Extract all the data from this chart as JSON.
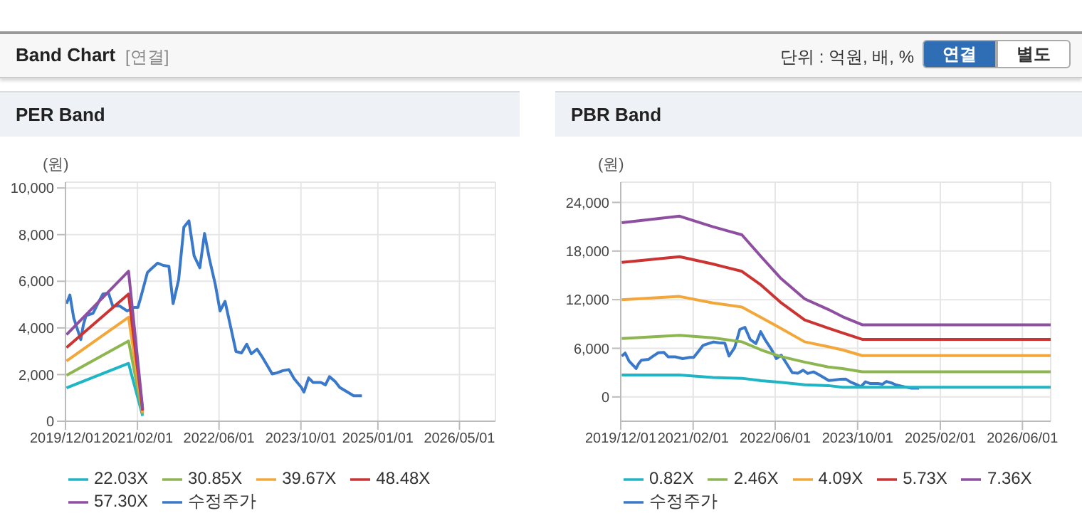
{
  "chart_data": [
    {
      "type": "other",
      "title": "Band Chart",
      "annotations": [
        "[연결]",
        "단위 : 억원, 배, %",
        "연결",
        "별도"
      ]
    },
    {
      "type": "line",
      "title": "PER Band",
      "ylabel": "(원)",
      "grid": true,
      "legend": "bottom",
      "marker": "none",
      "line_style": "solid",
      "xlim": [
        "2019-12-01",
        "2026-12-01"
      ],
      "xticks": [
        {
          "value": "2019-12-01",
          "label": "2019/12/01"
        },
        {
          "value": "2021-02-01",
          "label": "2021/02/01"
        },
        {
          "value": "2022-06-01",
          "label": "2022/06/01"
        },
        {
          "value": "2023-10-01",
          "label": "2023/10/01"
        },
        {
          "value": "2025-01-01",
          "label": "2025/01/01"
        },
        {
          "value": "2026-05-01",
          "label": "2026/05/01"
        }
      ],
      "ylim": [
        0,
        10250
      ],
      "yticks": [
        0,
        {
          "value": 2000,
          "label": "2,000"
        },
        {
          "value": 4000,
          "label": "4,000"
        },
        {
          "value": 6000,
          "label": "6,000"
        },
        {
          "value": 8000,
          "label": "8,000"
        },
        {
          "value": 10000,
          "label": "10,000"
        }
      ],
      "series": [
        {
          "name": "수정주가",
          "color": "#3a78c9",
          "x": [
            "2019-12-07",
            "2019-12-27",
            "2020-01-19",
            "2020-03-01",
            "2020-03-16",
            "2020-04-01",
            "2020-05-13",
            "2020-06-10",
            "2020-07-10",
            "2020-08-13",
            "2020-09-07",
            "2020-10-19",
            "2020-12-01",
            "2021-01-13",
            "2021-02-04",
            "2021-02-26",
            "2021-04-01",
            "2021-04-22",
            "2021-06-01",
            "2021-07-04",
            "2021-08-07",
            "2021-09-01",
            "2021-10-04",
            "2021-11-04",
            "2021-12-04",
            "2022-01-04",
            "2022-02-07",
            "2022-03-07",
            "2022-04-04",
            "2022-05-10",
            "2022-06-07",
            "2022-07-07",
            "2022-08-10",
            "2022-09-10",
            "2022-10-13",
            "2022-11-13",
            "2022-12-10",
            "2023-01-13",
            "2023-02-10",
            "2023-03-16",
            "2023-04-13",
            "2023-05-10",
            "2023-06-16",
            "2023-07-22",
            "2023-08-22",
            "2023-10-04",
            "2023-10-19",
            "2023-11-16",
            "2023-12-13",
            "2024-01-28",
            "2024-02-24",
            "2024-03-19",
            "2024-04-22",
            "2024-05-19",
            "2024-07-04",
            "2024-08-10",
            "2024-09-28"
          ],
          "values": [
            5040,
            5410,
            4430,
            3500,
            4120,
            4530,
            4630,
            5040,
            5450,
            5490,
            4940,
            4940,
            4730,
            4880,
            4880,
            5450,
            6370,
            6520,
            6780,
            6680,
            6640,
            5040,
            6070,
            8320,
            8590,
            7090,
            6580,
            8050,
            6990,
            5860,
            4730,
            5140,
            4020,
            2990,
            2930,
            3300,
            2890,
            3090,
            2790,
            2380,
            2030,
            2070,
            2170,
            2210,
            1820,
            1450,
            1250,
            1860,
            1660,
            1660,
            1560,
            1910,
            1700,
            1450,
            1250,
            1090,
            1090
          ]
        },
        {
          "name": "22.03X",
          "color": "#1fb5c4",
          "x": [
            "2019-12-07",
            "2020-12-10",
            "2021-03-04"
          ],
          "values": [
            1430,
            2480,
            230
          ]
        },
        {
          "name": "30.85X",
          "color": "#8db650",
          "x": [
            "2019-12-07",
            "2020-12-10",
            "2021-03-04"
          ],
          "values": [
            1970,
            3440,
            300
          ]
        },
        {
          "name": "39.67X",
          "color": "#f3a73a",
          "x": [
            "2019-12-07",
            "2020-12-10",
            "2021-03-04"
          ],
          "values": [
            2580,
            4460,
            370
          ]
        },
        {
          "name": "48.48X",
          "color": "#cc3333",
          "x": [
            "2019-12-07",
            "2020-12-10",
            "2021-03-04"
          ],
          "values": [
            3160,
            5450,
            460
          ]
        },
        {
          "name": "57.30X",
          "color": "#8e4fa0",
          "x": [
            "2019-12-07",
            "2020-12-10",
            "2021-03-04"
          ],
          "values": [
            3710,
            6430,
            530
          ]
        }
      ]
    },
    {
      "type": "line",
      "title": "PBR Band",
      "ylabel": "(원)",
      "grid": true,
      "legend": "bottom",
      "marker": "none",
      "line_style": "solid",
      "xlim": [
        "2019-12-01",
        "2026-11-15"
      ],
      "xticks": [
        {
          "value": "2019-12-01",
          "label": "2019/12/01"
        },
        {
          "value": "2021-02-01",
          "label": "2021/02/01"
        },
        {
          "value": "2022-06-01",
          "label": "2022/06/01"
        },
        {
          "value": "2023-10-01",
          "label": "2023/10/01"
        },
        {
          "value": "2025-02-01",
          "label": "2025/02/01"
        },
        {
          "value": "2026-06-01",
          "label": "2026/06/01"
        }
      ],
      "ylim": [
        -3000,
        26500
      ],
      "yticks": [
        0,
        {
          "value": 6000,
          "label": "6,000"
        },
        {
          "value": 12000,
          "label": "12,000"
        },
        {
          "value": 18000,
          "label": "18,000"
        },
        {
          "value": 24000,
          "label": "24,000"
        }
      ],
      "series": [
        {
          "name": "수정주가",
          "color": "#3a78c9",
          "x": [
            "2019-12-07",
            "2019-12-27",
            "2020-01-19",
            "2020-03-01",
            "2020-03-16",
            "2020-04-01",
            "2020-05-13",
            "2020-06-10",
            "2020-07-10",
            "2020-08-13",
            "2020-09-07",
            "2020-10-19",
            "2020-12-01",
            "2021-01-13",
            "2021-02-04",
            "2021-02-26",
            "2021-04-01",
            "2021-04-22",
            "2021-06-01",
            "2021-07-04",
            "2021-08-07",
            "2021-09-01",
            "2021-10-04",
            "2021-11-04",
            "2021-12-04",
            "2022-01-04",
            "2022-02-07",
            "2022-03-07",
            "2022-04-04",
            "2022-05-10",
            "2022-06-07",
            "2022-07-07",
            "2022-08-10",
            "2022-09-10",
            "2022-10-13",
            "2022-11-13",
            "2022-12-10",
            "2023-01-13",
            "2023-02-10",
            "2023-03-16",
            "2023-04-13",
            "2023-05-10",
            "2023-06-16",
            "2023-07-22",
            "2023-08-22",
            "2023-10-04",
            "2023-10-19",
            "2023-11-16",
            "2023-12-13",
            "2024-01-28",
            "2024-02-24",
            "2024-03-19",
            "2024-04-22",
            "2024-05-19",
            "2024-07-04",
            "2024-08-10",
            "2024-09-28"
          ],
          "values": [
            5040,
            5410,
            4430,
            3500,
            4120,
            4530,
            4630,
            5040,
            5450,
            5490,
            4940,
            4940,
            4730,
            4880,
            4880,
            5450,
            6370,
            6520,
            6780,
            6680,
            6640,
            5040,
            6070,
            8320,
            8590,
            7090,
            6580,
            8050,
            6990,
            5860,
            4730,
            5140,
            4020,
            2990,
            2930,
            3300,
            2890,
            3090,
            2790,
            2380,
            2030,
            2070,
            2170,
            2210,
            1820,
            1450,
            1250,
            1860,
            1660,
            1660,
            1560,
            1910,
            1700,
            1450,
            1250,
            1090,
            1090
          ]
        },
        {
          "name": "0.82X",
          "color": "#1fb5c4",
          "x": [
            "2019-12-07",
            "2020-11-13",
            "2021-05-28",
            "2021-11-16",
            "2022-03-10",
            "2022-07-01",
            "2022-11-22",
            "2023-04-10",
            "2023-07-04",
            "2023-10-28",
            "2026-11-15"
          ],
          "values": [
            2700,
            2700,
            2400,
            2300,
            2000,
            1800,
            1500,
            1400,
            1200,
            1200,
            1200
          ]
        },
        {
          "name": "2.46X",
          "color": "#8db650",
          "x": [
            "2019-12-07",
            "2020-11-13",
            "2021-05-28",
            "2021-11-16",
            "2022-03-10",
            "2022-07-01",
            "2022-11-22",
            "2023-04-10",
            "2023-07-04",
            "2023-10-28",
            "2026-11-15"
          ],
          "values": [
            7200,
            7600,
            7300,
            6800,
            5800,
            5000,
            4300,
            3700,
            3500,
            3100,
            3100
          ]
        },
        {
          "name": "4.09X",
          "color": "#f3a73a",
          "x": [
            "2019-12-07",
            "2020-11-13",
            "2021-05-28",
            "2021-11-16",
            "2022-03-10",
            "2022-07-01",
            "2022-11-22",
            "2023-04-10",
            "2023-07-04",
            "2023-10-28",
            "2026-11-15"
          ],
          "values": [
            12000,
            12400,
            11600,
            11100,
            9800,
            8500,
            6800,
            6200,
            5800,
            5100,
            5100
          ]
        },
        {
          "name": "5.73X",
          "color": "#cc3333",
          "x": [
            "2019-12-07",
            "2020-11-13",
            "2021-05-28",
            "2021-11-16",
            "2022-03-10",
            "2022-07-01",
            "2022-11-22",
            "2023-04-10",
            "2023-07-04",
            "2023-10-28",
            "2026-11-15"
          ],
          "values": [
            16600,
            17300,
            16400,
            15500,
            13800,
            11700,
            9500,
            8500,
            7900,
            7100,
            7100
          ]
        },
        {
          "name": "7.36X",
          "color": "#8e4fa0",
          "x": [
            "2019-12-07",
            "2020-11-13",
            "2021-05-28",
            "2021-11-16",
            "2022-03-10",
            "2022-07-01",
            "2022-11-22",
            "2023-04-10",
            "2023-07-04",
            "2023-10-28",
            "2026-11-15"
          ],
          "values": [
            21500,
            22300,
            21000,
            20000,
            17300,
            14700,
            12100,
            10800,
            9900,
            8900,
            8900
          ]
        }
      ]
    }
  ]
}
